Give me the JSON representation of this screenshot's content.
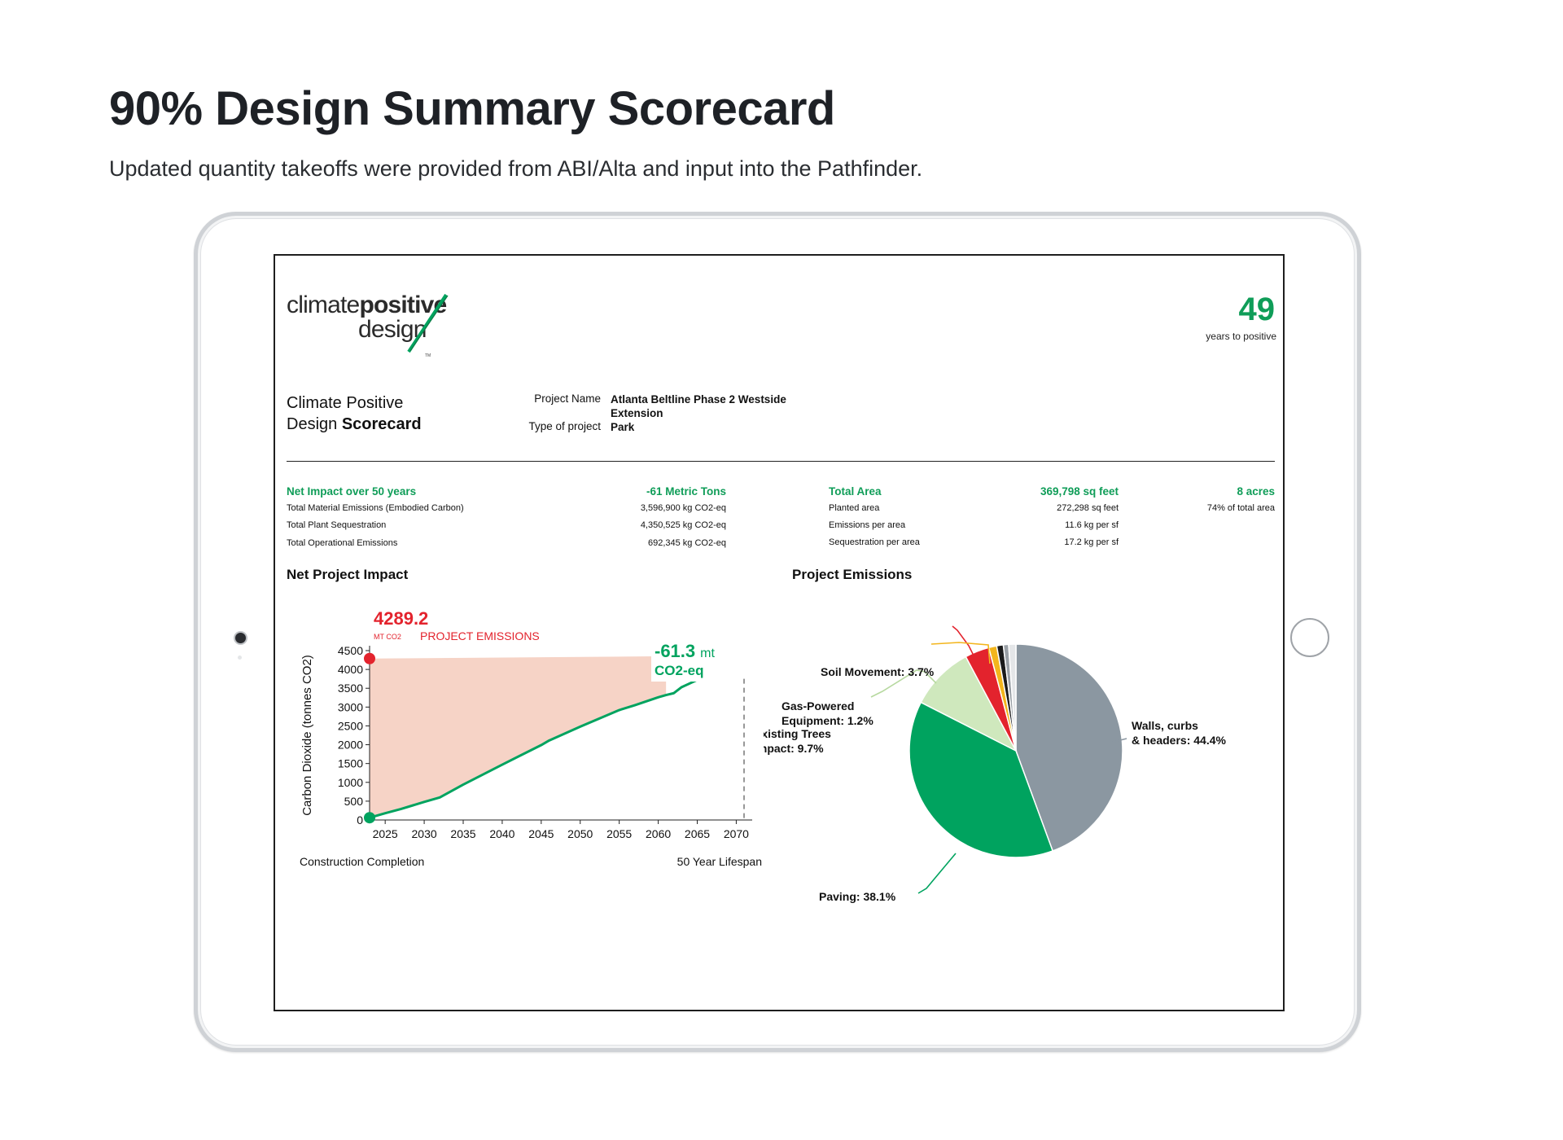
{
  "page": {
    "title": "90% Design Summary Scorecard",
    "subtitle": "Updated quantity takeoffs were provided from ABI/Alta and input into the Pathfinder."
  },
  "logo": {
    "word1": "climate",
    "word2": "positive",
    "word3": "design",
    "tm": "TM"
  },
  "header": {
    "years_number": "49",
    "years_label": "years to positive"
  },
  "scorecard": {
    "title_line1": "Climate Positive",
    "title_line2_plain": "Design ",
    "title_line2_bold": "Scorecard",
    "project_name_label": "Project Name",
    "project_name_value": "Atlanta Beltline Phase 2 Westside Extension",
    "project_type_label": "Type of project",
    "project_type_value": "Park"
  },
  "stats": {
    "net_impact_label": "Net Impact over 50 years",
    "net_impact_value": "-61 Metric Tons",
    "material_label": "Total Material Emissions (Embodied Carbon)",
    "material_value": "3,596,900 kg CO2-eq",
    "sequestration_label": "Total Plant Sequestration",
    "sequestration_value": "4,350,525 kg CO2-eq",
    "operational_label": "Total Operational Emissions",
    "operational_value": "692,345 kg CO2-eq",
    "total_area_label": "Total Area",
    "total_area_value": "369,798 sq feet",
    "total_acres": "8 acres",
    "planted_label": "Planted area",
    "planted_value": "272,298 sq feet",
    "planted_pct": "74% of total area",
    "emissions_area_label": "Emissions per area",
    "emissions_area_value": "11.6 kg per sf",
    "seq_area_label": "Sequestration per area",
    "seq_area_value": "17.2 kg per sf"
  },
  "colors": {
    "green": "#00a35f",
    "red": "#e3232d",
    "salmon": "#f6d3c6",
    "gray": "#8b97a1",
    "light_green": "#cfe8bd",
    "yellow": "#f3b51c"
  },
  "chart_data": [
    {
      "type": "area",
      "title": "Net Project Impact",
      "ylabel": "Carbon Dioxide (tonnes CO2)",
      "xlim": [
        2023,
        2071
      ],
      "ylim": [
        0,
        4500
      ],
      "yticks": [
        0,
        500,
        1000,
        1500,
        2000,
        2500,
        3000,
        3500,
        4000,
        4500
      ],
      "xticks": [
        2025,
        2030,
        2035,
        2040,
        2045,
        2050,
        2055,
        2060,
        2065,
        2070
      ],
      "series": [
        {
          "name": "PROJECT EMISSIONS",
          "x": [
            2023,
            2061
          ],
          "y": [
            4289.2,
            4350
          ]
        },
        {
          "name": "",
          "x": [
            2023,
            2025,
            2027,
            2030,
            2032,
            2035,
            2040,
            2045,
            2046,
            2050,
            2055,
            2057,
            2060,
            2061,
            2062,
            2063,
            2065,
            2066
          ],
          "y": [
            60,
            180,
            290,
            480,
            600,
            940,
            1470,
            1990,
            2110,
            2480,
            2920,
            3050,
            3260,
            3320,
            3370,
            3530,
            3720,
            3790
          ]
        }
      ],
      "annotations": {
        "start_value": "4289.2",
        "start_unit": "MT CO2",
        "start_label": "PROJECT EMISSIONS",
        "end_value": "-61.3",
        "end_unit": "mt",
        "end_label": "CO2-eq",
        "x_start_label": "Construction Completion",
        "x_end_label": "50 Year Lifespan"
      }
    },
    {
      "type": "pie",
      "title": "Project Emissions",
      "slices": [
        {
          "label": "Walls, curbs & headers:",
          "pct_label": "44.4%",
          "value": 44.4,
          "color": "#8b97a1"
        },
        {
          "label": "Paving:",
          "pct_label": "38.1%",
          "value": 38.1,
          "color": "#00a35f"
        },
        {
          "label": "Existing Trees Impact:",
          "pct_label": "9.7%",
          "value": 9.7,
          "color": "#cfe8bd"
        },
        {
          "label": "Soil Movement:",
          "pct_label": "3.7%",
          "value": 3.7,
          "color": "#e3232d"
        },
        {
          "label": "Gas-Powered Equipment:",
          "pct_label": "1.2%",
          "value": 1.2,
          "color": "#f3b51c"
        },
        {
          "label": "",
          "pct_label": "",
          "value": 1.0,
          "color": "#1b1b1b"
        },
        {
          "label": "",
          "pct_label": "",
          "value": 0.8,
          "color": "#9aa0a6"
        },
        {
          "label": "",
          "pct_label": "",
          "value": 1.1,
          "color": "#e4e6e8"
        }
      ]
    }
  ]
}
